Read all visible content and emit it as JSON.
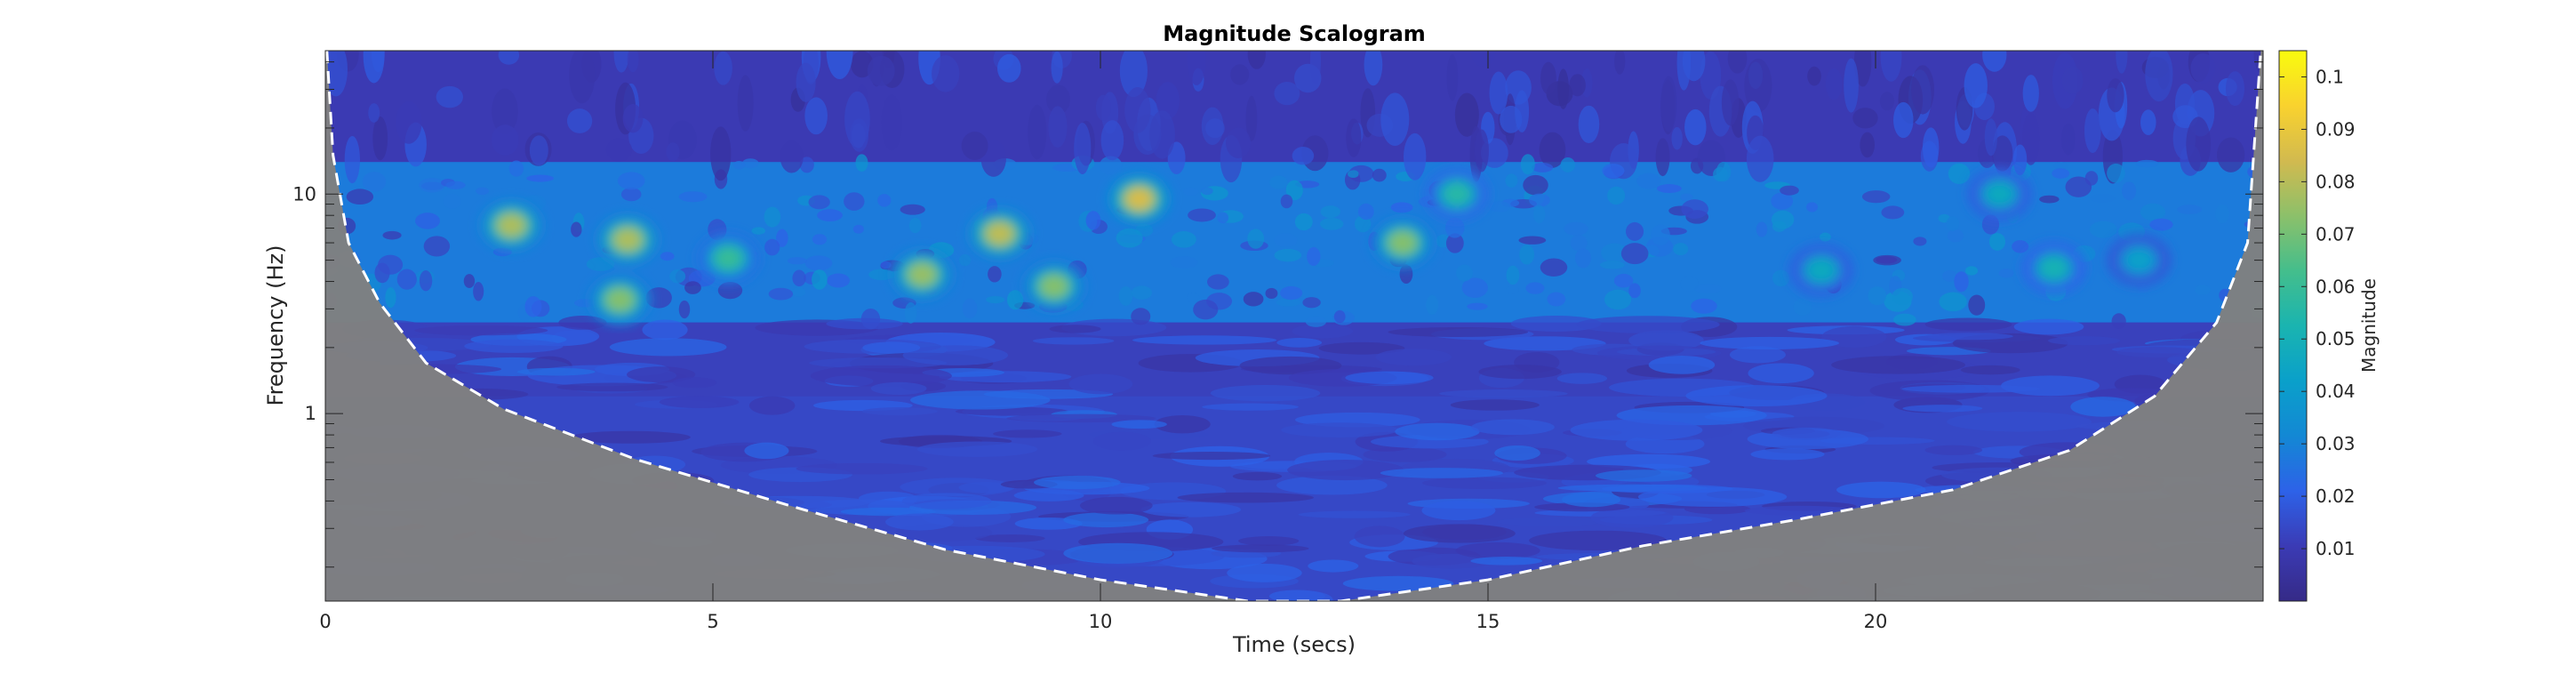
{
  "chart_data": {
    "type": "heatmap",
    "title": "Magnitude Scalogram",
    "xlabel": "Time (secs)",
    "ylabel": "Frequency (Hz)",
    "xlim": [
      0,
      25
    ],
    "ylim_hz": [
      0.14,
      45
    ],
    "y_scale": "log",
    "x_ticks": [
      0,
      5,
      10,
      15,
      20
    ],
    "y_ticks": [
      1,
      10
    ],
    "colorbar": {
      "label": "Magnitude",
      "range": [
        0,
        0.105
      ],
      "ticks": [
        0.01,
        0.02,
        0.03,
        0.04,
        0.05,
        0.06,
        0.07,
        0.08,
        0.09,
        0.1
      ],
      "colormap": "parula"
    },
    "cone_of_influence": {
      "style": "white dashed",
      "fill_color": "#808080",
      "points": [
        [
          0.02,
          45
        ],
        [
          0.1,
          15
        ],
        [
          0.3,
          6
        ],
        [
          0.7,
          3.2
        ],
        [
          1.3,
          1.7
        ],
        [
          2.3,
          1.05
        ],
        [
          4.0,
          0.62
        ],
        [
          6.0,
          0.38
        ],
        [
          8.0,
          0.24
        ],
        [
          10.0,
          0.175
        ],
        [
          11.9,
          0.14
        ],
        [
          13.1,
          0.14
        ],
        [
          15.0,
          0.175
        ],
        [
          17.0,
          0.25
        ],
        [
          19.0,
          0.33
        ],
        [
          21.0,
          0.45
        ],
        [
          22.5,
          0.68
        ],
        [
          23.6,
          1.2
        ],
        [
          24.4,
          2.6
        ],
        [
          24.8,
          6
        ],
        [
          24.97,
          45
        ]
      ]
    },
    "hotspots": [
      {
        "t": 2.4,
        "f": 7.2,
        "magnitude": 0.092
      },
      {
        "t": 3.9,
        "f": 6.2,
        "magnitude": 0.092
      },
      {
        "t": 3.8,
        "f": 3.3,
        "magnitude": 0.085
      },
      {
        "t": 5.2,
        "f": 5.1,
        "magnitude": 0.07
      },
      {
        "t": 7.7,
        "f": 4.3,
        "magnitude": 0.088
      },
      {
        "t": 8.7,
        "f": 6.6,
        "magnitude": 0.095
      },
      {
        "t": 9.4,
        "f": 3.8,
        "magnitude": 0.085
      },
      {
        "t": 10.5,
        "f": 9.5,
        "magnitude": 0.1
      },
      {
        "t": 13.9,
        "f": 6.0,
        "magnitude": 0.085
      },
      {
        "t": 14.6,
        "f": 10.0,
        "magnitude": 0.065
      },
      {
        "t": 19.3,
        "f": 4.5,
        "magnitude": 0.055
      },
      {
        "t": 21.6,
        "f": 10.0,
        "magnitude": 0.055
      },
      {
        "t": 22.3,
        "f": 4.6,
        "magnitude": 0.06
      },
      {
        "t": 23.4,
        "f": 5.0,
        "magnitude": 0.05
      }
    ]
  }
}
